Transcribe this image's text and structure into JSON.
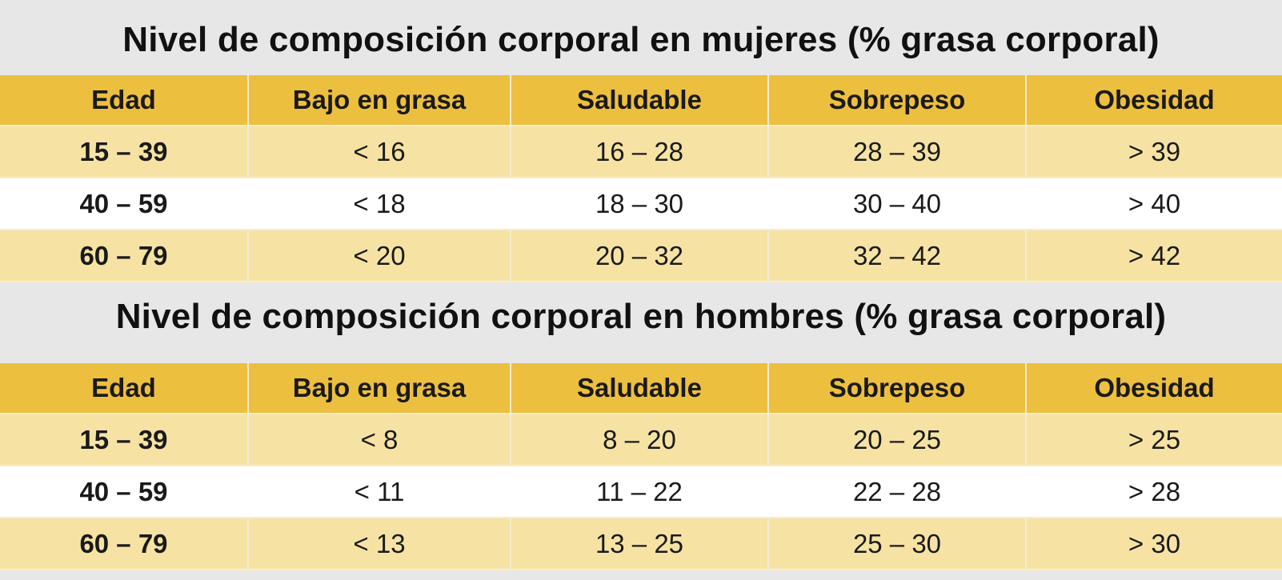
{
  "tables": [
    {
      "title": "Nivel de composición corporal en mujeres (% grasa corporal)",
      "headers": [
        "Edad",
        "Bajo en grasa",
        "Saludable",
        "Sobrepeso",
        "Obesidad"
      ],
      "rows": [
        [
          "15 – 39",
          "< 16",
          "16 – 28",
          "28 – 39",
          "> 39"
        ],
        [
          "40 – 59",
          "< 18",
          "18 – 30",
          "30 – 40",
          "> 40"
        ],
        [
          "60 – 79",
          "< 20",
          "20 – 32",
          "32 – 42",
          "> 42"
        ]
      ]
    },
    {
      "title": "Nivel de composición corporal en hombres (% grasa corporal)",
      "headers": [
        "Edad",
        "Bajo en grasa",
        "Saludable",
        "Sobrepeso",
        "Obesidad"
      ],
      "rows": [
        [
          "15 – 39",
          "< 8",
          "8 – 20",
          "20 – 25",
          "> 25"
        ],
        [
          "40 – 59",
          "< 11",
          "11 – 22",
          "22 – 28",
          "> 28"
        ],
        [
          "60 – 79",
          "< 13",
          "13 – 25",
          "25 – 30",
          "> 30"
        ]
      ]
    }
  ],
  "colors": {
    "header_yellow": "#edbf3f",
    "row_light_yellow": "#f6e3a4",
    "row_white": "#ffffff",
    "title_background": "#e7e7e7"
  }
}
